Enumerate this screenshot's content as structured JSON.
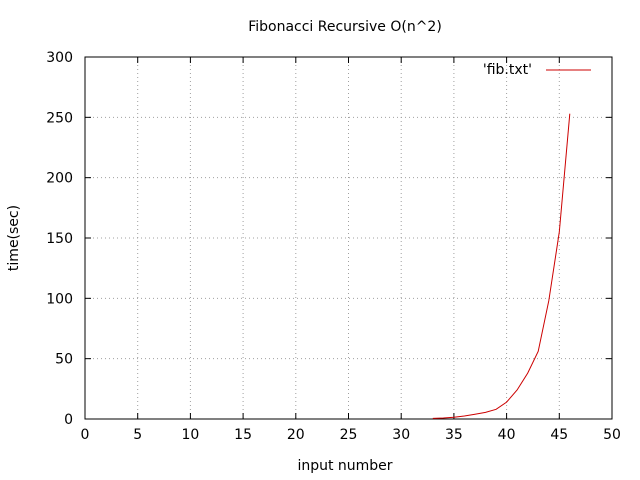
{
  "chart_data": {
    "type": "line",
    "title": "Fibonacci Recursive O(n^2)",
    "xlabel": "input number",
    "ylabel": "time(sec)",
    "xlim": [
      0,
      50
    ],
    "ylim": [
      0,
      300
    ],
    "x_ticks": [
      0,
      5,
      10,
      15,
      20,
      25,
      30,
      35,
      40,
      45,
      50
    ],
    "y_ticks": [
      0,
      50,
      100,
      150,
      200,
      250,
      300
    ],
    "grid": true,
    "legend_position": "top-right",
    "series": [
      {
        "name": "'fib.txt'",
        "color": "#cc0000",
        "x": [
          33,
          34,
          35,
          36,
          37,
          38,
          39,
          40,
          41,
          42,
          43,
          44,
          45,
          46
        ],
        "y": [
          0.5,
          0.8,
          1.5,
          2.5,
          4,
          5.5,
          8,
          14,
          24,
          38,
          56,
          98,
          155,
          253
        ]
      }
    ]
  }
}
